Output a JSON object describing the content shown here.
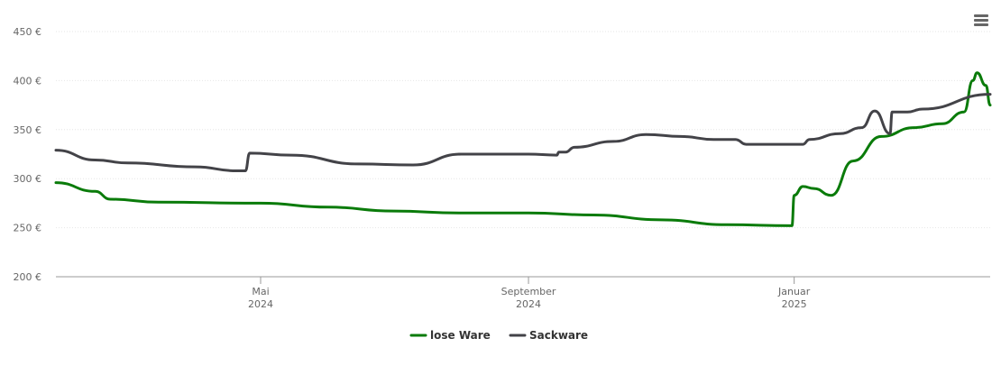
{
  "menu": {
    "icon": "hamburger-menu-icon"
  },
  "chart_data": {
    "type": "line",
    "title": "",
    "xlabel": "",
    "ylabel": "",
    "x_domain": [
      "2024-01-28",
      "2025-04-01"
    ],
    "ylim": [
      200,
      450
    ],
    "y_ticks": [
      200,
      250,
      300,
      350,
      400,
      450
    ],
    "y_tick_labels": [
      "200 €",
      "250 €",
      "300 €",
      "350 €",
      "400 €",
      "450 €"
    ],
    "x_ticks": [
      {
        "date": "2024-05-01",
        "month": "Mai",
        "year": "2024"
      },
      {
        "date": "2024-09-01",
        "month": "September",
        "year": "2024"
      },
      {
        "date": "2025-01-01",
        "month": "Januar",
        "year": "2025"
      }
    ],
    "grid": true,
    "legend_position": "bottom-center",
    "series": [
      {
        "name": "lose Ware",
        "color": "#0a7b0a",
        "points": [
          [
            "2024-01-28",
            296
          ],
          [
            "2024-02-15",
            287
          ],
          [
            "2024-02-22",
            279
          ],
          [
            "2024-03-15",
            276
          ],
          [
            "2024-05-01",
            275
          ],
          [
            "2024-06-01",
            271
          ],
          [
            "2024-07-01",
            267
          ],
          [
            "2024-08-01",
            265
          ],
          [
            "2024-09-01",
            265
          ],
          [
            "2024-10-01",
            263
          ],
          [
            "2024-11-01",
            258
          ],
          [
            "2024-12-01",
            253
          ],
          [
            "2024-12-31",
            252
          ],
          [
            "2025-01-01",
            283
          ],
          [
            "2025-01-05",
            292
          ],
          [
            "2025-01-10",
            290
          ],
          [
            "2025-01-18",
            283
          ],
          [
            "2025-01-28",
            318
          ],
          [
            "2025-02-10",
            343
          ],
          [
            "2025-02-25",
            352
          ],
          [
            "2025-03-10",
            356
          ],
          [
            "2025-03-20",
            368
          ],
          [
            "2025-03-24",
            400
          ],
          [
            "2025-03-26",
            408
          ],
          [
            "2025-03-30",
            395
          ],
          [
            "2025-04-01",
            375
          ]
        ]
      },
      {
        "name": "Sackware",
        "color": "#434348",
        "points": [
          [
            "2024-01-28",
            329
          ],
          [
            "2024-02-15",
            319
          ],
          [
            "2024-03-01",
            316
          ],
          [
            "2024-04-01",
            312
          ],
          [
            "2024-04-20",
            308
          ],
          [
            "2024-04-24",
            308
          ],
          [
            "2024-04-26",
            326
          ],
          [
            "2024-05-15",
            324
          ],
          [
            "2024-06-15",
            315
          ],
          [
            "2024-07-10",
            314
          ],
          [
            "2024-08-01",
            325
          ],
          [
            "2024-09-01",
            325
          ],
          [
            "2024-09-14",
            324
          ],
          [
            "2024-09-15",
            327
          ],
          [
            "2024-09-18",
            327
          ],
          [
            "2024-09-22",
            332
          ],
          [
            "2024-10-10",
            338
          ],
          [
            "2024-10-25",
            345
          ],
          [
            "2024-11-10",
            343
          ],
          [
            "2024-11-25",
            340
          ],
          [
            "2024-12-05",
            340
          ],
          [
            "2024-12-10",
            335
          ],
          [
            "2025-01-05",
            335
          ],
          [
            "2025-01-08",
            340
          ],
          [
            "2025-01-22",
            346
          ],
          [
            "2025-02-01",
            352
          ],
          [
            "2025-02-07",
            369
          ],
          [
            "2025-02-14",
            346
          ],
          [
            "2025-02-15",
            368
          ],
          [
            "2025-02-22",
            368
          ],
          [
            "2025-03-01",
            371
          ],
          [
            "2025-04-01",
            386
          ]
        ]
      }
    ]
  }
}
